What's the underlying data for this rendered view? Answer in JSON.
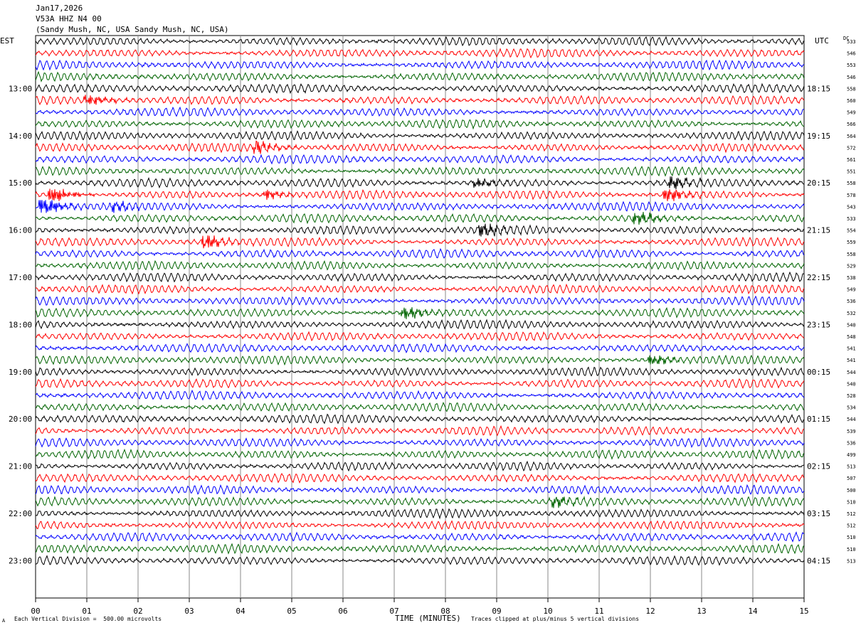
{
  "header": {
    "date": "Jan17,2026",
    "station": "V53A HHZ N4 00",
    "location": "(Sandy Mush, NC, USA Sandy Mush, NC, USA)"
  },
  "left_tz": "EST",
  "right_tz": "UTC",
  "dc_label": "DC",
  "footer": {
    "mark": "A",
    "scale": "Each Vertical Division =  500.00 microvolts",
    "xlabel": "TIME (MINUTES)",
    "clip": "Traces clipped at plus/minus 5 vertical divisions"
  },
  "colors": [
    "#000000",
    "#ff0000",
    "#0000ff",
    "#006400"
  ],
  "chart_data": {
    "type": "line",
    "title": "Jan17,2026",
    "xlabel": "TIME (MINUTES)",
    "ylabel": "",
    "x_range": [
      0,
      15
    ],
    "x_ticks": [
      "00",
      "01",
      "02",
      "03",
      "04",
      "05",
      "06",
      "07",
      "08",
      "09",
      "10",
      "11",
      "12",
      "13",
      "14",
      "15"
    ],
    "grid": true,
    "trace_count": 45,
    "trace_minutes": 15,
    "left_hour_labels": [
      "13:00",
      "14:00",
      "15:00",
      "16:00",
      "17:00",
      "18:00",
      "19:00",
      "20:00",
      "21:00",
      "22:00",
      "23:00"
    ],
    "right_hour_labels": [
      "18:15",
      "19:15",
      "20:15",
      "21:15",
      "22:15",
      "23:15",
      "00:15",
      "01:15",
      "02:15",
      "03:15",
      "04:15"
    ],
    "dc_offsets": [
      533,
      546,
      553,
      546,
      558,
      560,
      549,
      566,
      564,
      572,
      561,
      551,
      558,
      578,
      543,
      533,
      554,
      559,
      558,
      529,
      538,
      549,
      536,
      532,
      540,
      548,
      541,
      541,
      544,
      540,
      528,
      534,
      544,
      539,
      536,
      499,
      513,
      507,
      500,
      510,
      512,
      512,
      510,
      510,
      513
    ],
    "events": [
      {
        "trace": 5,
        "minute": 1.0,
        "amp": 1.2
      },
      {
        "trace": 9,
        "minute": 4.3,
        "amp": 1.3
      },
      {
        "trace": 12,
        "minute": 8.6,
        "amp": 1.1
      },
      {
        "trace": 12,
        "minute": 12.4,
        "amp": 1.4
      },
      {
        "trace": 13,
        "minute": 0.3,
        "amp": 1.8
      },
      {
        "trace": 13,
        "minute": 4.5,
        "amp": 1.0
      },
      {
        "trace": 13,
        "minute": 12.3,
        "amp": 1.7
      },
      {
        "trace": 14,
        "minute": 0.1,
        "amp": 2.4
      },
      {
        "trace": 14,
        "minute": 1.5,
        "amp": 1.0
      },
      {
        "trace": 15,
        "minute": 11.7,
        "amp": 1.6
      },
      {
        "trace": 16,
        "minute": 8.7,
        "amp": 1.5
      },
      {
        "trace": 17,
        "minute": 3.3,
        "amp": 1.7
      },
      {
        "trace": 23,
        "minute": 7.2,
        "amp": 1.6
      },
      {
        "trace": 27,
        "minute": 12.0,
        "amp": 1.2
      },
      {
        "trace": 39,
        "minute": 10.1,
        "amp": 1.1
      }
    ]
  }
}
